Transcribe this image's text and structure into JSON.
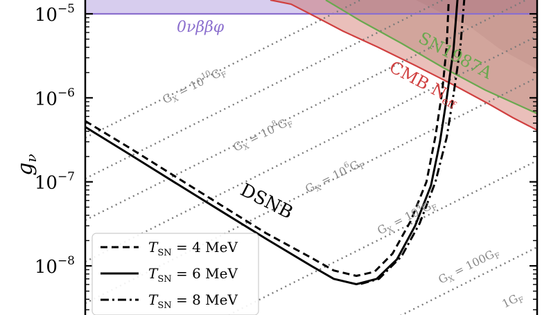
{
  "chart_data": {
    "type": "line",
    "title": "",
    "xlabel": "",
    "ylabel": "gν",
    "yscale": "log",
    "ylim": [
      2e-09,
      1.8e-05
    ],
    "yticks": [
      {
        "value": 1e-05,
        "base": "10",
        "exp": "−5"
      },
      {
        "value": 1e-06,
        "base": "10",
        "exp": "−6"
      },
      {
        "value": 1e-07,
        "base": "10",
        "exp": "−7"
      },
      {
        "value": 1e-08,
        "base": "10",
        "exp": "−8"
      }
    ],
    "series": [
      {
        "name": "TSN = 4 MeV",
        "dash": "dashed",
        "color": "#000000",
        "points": [
          [
            0.0,
            5.3e-07
          ],
          [
            0.1,
            2.5e-07
          ],
          [
            0.2,
            1.15e-07
          ],
          [
            0.3,
            5.3e-08
          ],
          [
            0.4,
            2.45e-08
          ],
          [
            0.5,
            1.25e-08
          ],
          [
            0.55,
            8.8e-09
          ],
          [
            0.6,
            7.6e-09
          ],
          [
            0.64,
            8.5e-09
          ],
          [
            0.68,
            1.4e-08
          ],
          [
            0.72,
            3.4e-08
          ],
          [
            0.755,
            1e-07
          ],
          [
            0.775,
            3.5e-07
          ],
          [
            0.79,
            1.2e-06
          ],
          [
            0.8,
            4.2e-06
          ],
          [
            0.805,
            1.8e-05
          ]
        ]
      },
      {
        "name": "TSN = 6 MeV",
        "dash": "solid",
        "color": "#000000",
        "points": [
          [
            0.0,
            4.5e-07
          ],
          [
            0.1,
            2.1e-07
          ],
          [
            0.2,
            9.7e-08
          ],
          [
            0.3,
            4.5e-08
          ],
          [
            0.4,
            2.1e-08
          ],
          [
            0.5,
            1e-08
          ],
          [
            0.55,
            7e-09
          ],
          [
            0.6,
            6.05e-09
          ],
          [
            0.645,
            7e-09
          ],
          [
            0.69,
            1.2e-08
          ],
          [
            0.73,
            3e-08
          ],
          [
            0.765,
            9e-08
          ],
          [
            0.785,
            3e-07
          ],
          [
            0.8,
            1e-06
          ],
          [
            0.815,
            3.8e-06
          ],
          [
            0.825,
            1.8e-05
          ]
        ]
      },
      {
        "name": "TSN = 8 MeV",
        "dash": "dashdot",
        "color": "#000000",
        "points": [
          [
            0.61,
            6.1e-09
          ],
          [
            0.65,
            7e-09
          ],
          [
            0.7,
            1.3e-08
          ],
          [
            0.74,
            3.2e-08
          ],
          [
            0.775,
            1e-07
          ],
          [
            0.8,
            3.4e-07
          ],
          [
            0.815,
            1.1e-06
          ],
          [
            0.83,
            4e-06
          ],
          [
            0.84,
            1.8e-05
          ]
        ]
      }
    ],
    "bounds": [
      {
        "label": "0νββφ",
        "color": "#8b6fce",
        "value": 1e-05
      },
      {
        "label": "SN1987A",
        "color": "#6aa84f"
      },
      {
        "label": "CMB Neff",
        "color": "#d04040"
      }
    ],
    "contours": [
      {
        "prefix": "G",
        "sub": "X",
        "eq": " = 10",
        "exp": "10",
        "unit": "G",
        "usub": "F"
      },
      {
        "prefix": "G",
        "sub": "X",
        "eq": " = 10",
        "exp": "8",
        "unit": "G",
        "usub": "F"
      },
      {
        "prefix": "G",
        "sub": "X",
        "eq": " = 10",
        "exp": "6",
        "unit": "G",
        "usub": "F"
      },
      {
        "prefix": "G",
        "sub": "X",
        "eq": " = 10",
        "exp": "4",
        "unit": "G",
        "usub": "F"
      },
      {
        "prefix": "G",
        "sub": "X",
        "eq": " = 100",
        "exp": "",
        "unit": "G",
        "usub": "F"
      },
      {
        "prefix": "1",
        "sub": "",
        "eq": "",
        "exp": "",
        "unit": "G",
        "usub": "F"
      }
    ],
    "annotations": {
      "dsnb": "DSNB",
      "sn1987a": "SN1987A",
      "cmb_main": "CMB N",
      "cmb_sub": "eff",
      "zeronu": "0νββφ"
    },
    "legend": {
      "position": "bottom-left",
      "entries": [
        {
          "T": "T",
          "sub": "SN",
          "eq": " = 4 MeV",
          "dash": "dashed"
        },
        {
          "T": "T",
          "sub": "SN",
          "eq": " = 6 MeV",
          "dash": "solid"
        },
        {
          "T": "T",
          "sub": "SN",
          "eq": " = 8 MeV",
          "dash": "dashdot"
        }
      ]
    },
    "grid": false
  }
}
